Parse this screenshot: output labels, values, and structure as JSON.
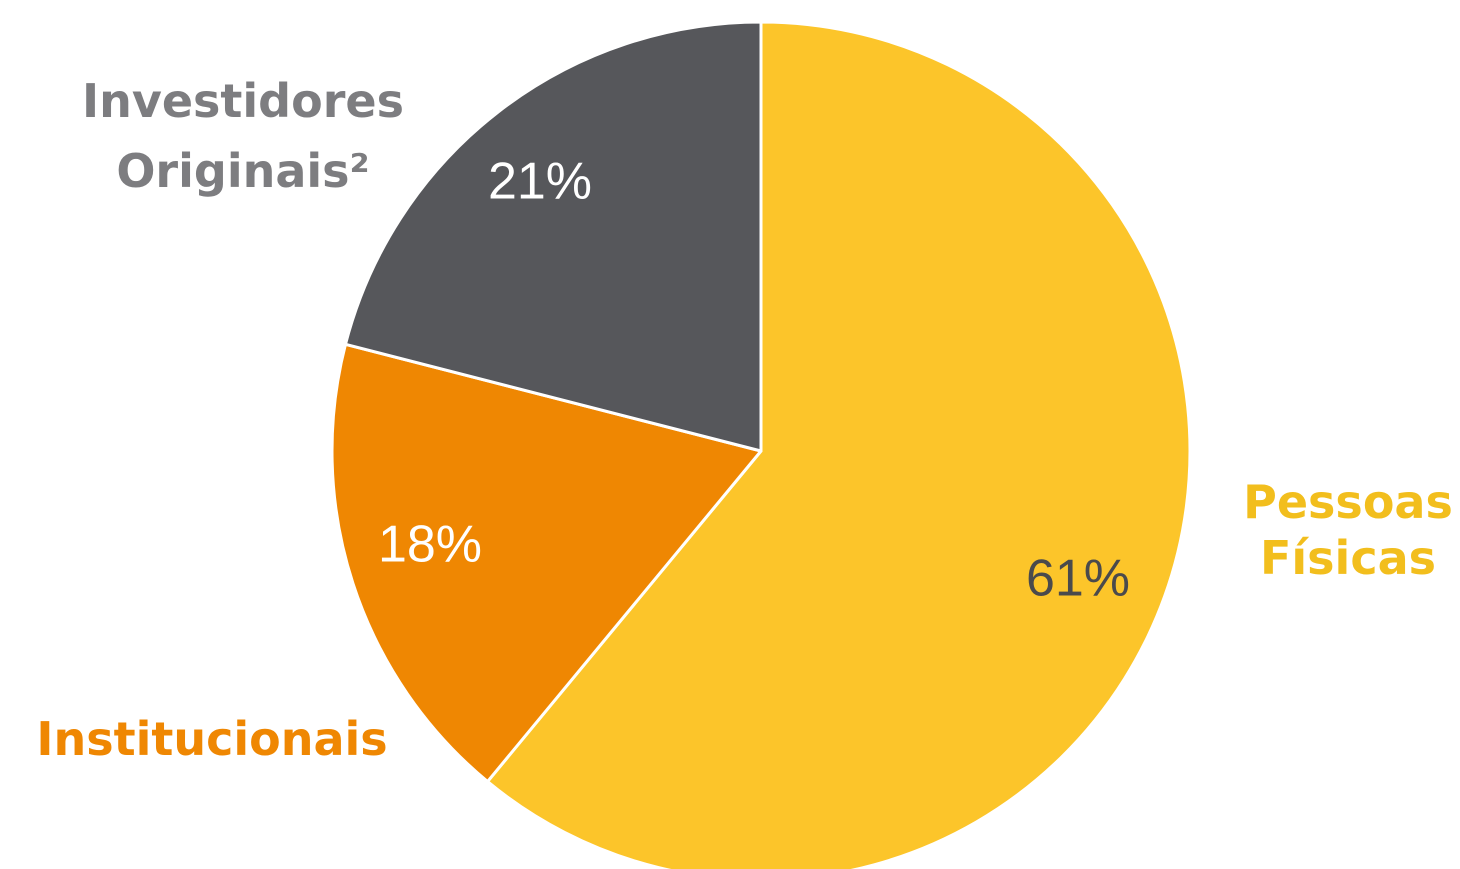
{
  "chart_data": {
    "type": "pie",
    "slices": [
      {
        "category_lines": [
          "Pessoas",
          "Físicas"
        ],
        "value": 61,
        "value_label": "61%",
        "color": "#FCC52A",
        "label_color": "#F2BE1D",
        "value_color": "#4A4A4C"
      },
      {
        "category_lines": [
          "Institucionais"
        ],
        "value": 18,
        "value_label": "18%",
        "color": "#EF8702",
        "label_color": "#EF8702",
        "value_color": "#FFFFFF"
      },
      {
        "category_lines": [
          "Investidores",
          "Originais²"
        ],
        "value": 21,
        "value_label": "21%",
        "color": "#56575B",
        "label_color": "#7D7D80",
        "value_color": "#FFFFFF"
      }
    ],
    "start_angle": "12 o'clock",
    "direction": "clockwise",
    "legend": "none"
  }
}
